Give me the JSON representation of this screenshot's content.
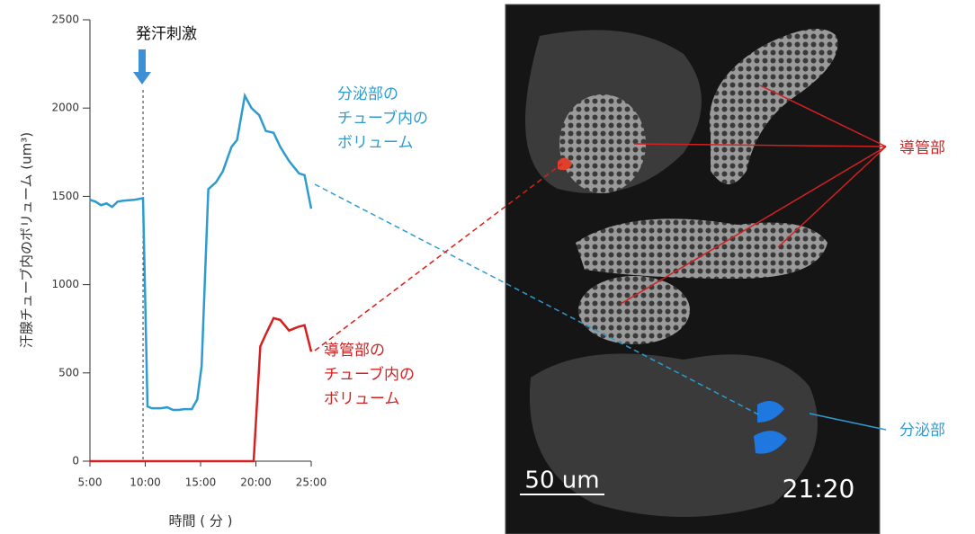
{
  "chart_data": {
    "type": "line",
    "x_label": "時間 ( 分 )",
    "y_label": "汗腺チューブ内のボリューム (um³)",
    "xlim": [
      5,
      25
    ],
    "ylim": [
      0,
      2500
    ],
    "xticks": [
      {
        "value": 5,
        "label": "5:00"
      },
      {
        "value": 10,
        "label": "10:00"
      },
      {
        "value": 15,
        "label": "15:00"
      },
      {
        "value": 20,
        "label": "20:00"
      },
      {
        "value": 25,
        "label": "25:00"
      }
    ],
    "yticks": [
      0,
      500,
      1000,
      1500,
      2000,
      2500
    ],
    "annotation": {
      "text": "発汗刺激",
      "x": 9.8
    },
    "series": [
      {
        "name": [
          "分泌部の",
          "チューブ内の",
          "ボリューム"
        ],
        "color": "#2e9bd0",
        "x": [
          5.0,
          5.5,
          6.0,
          6.5,
          7.0,
          7.5,
          8.0,
          9.0,
          9.8,
          10.2,
          10.6,
          11.4,
          12.0,
          12.5,
          13.0,
          13.5,
          14.2,
          14.7,
          15.1,
          15.7,
          16.4,
          17.0,
          17.8,
          18.3,
          19.0,
          19.6,
          20.3,
          20.9,
          21.6,
          22.2,
          23.0,
          23.9,
          24.4,
          25.0
        ],
        "values": [
          1480,
          1470,
          1450,
          1460,
          1440,
          1470,
          1475,
          1480,
          1490,
          310,
          300,
          300,
          305,
          290,
          290,
          295,
          295,
          350,
          540,
          1540,
          1580,
          1640,
          1780,
          1820,
          2070,
          2000,
          1960,
          1870,
          1860,
          1780,
          1700,
          1630,
          1620,
          1430
        ]
      },
      {
        "name": [
          "導管部の",
          "チューブ内の",
          "ボリューム"
        ],
        "color": "#d42020",
        "x": [
          5.0,
          10.0,
          15.0,
          19.8,
          20.4,
          20.9,
          21.6,
          22.2,
          23.0,
          23.8,
          24.4,
          25.0
        ],
        "values": [
          0,
          0,
          0,
          0,
          650,
          720,
          810,
          800,
          740,
          760,
          770,
          620
        ]
      }
    ]
  },
  "image": {
    "duct_label": "導管部",
    "secretory_label": "分泌部",
    "scale_bar": "50 um",
    "timestamp": "21:20"
  }
}
